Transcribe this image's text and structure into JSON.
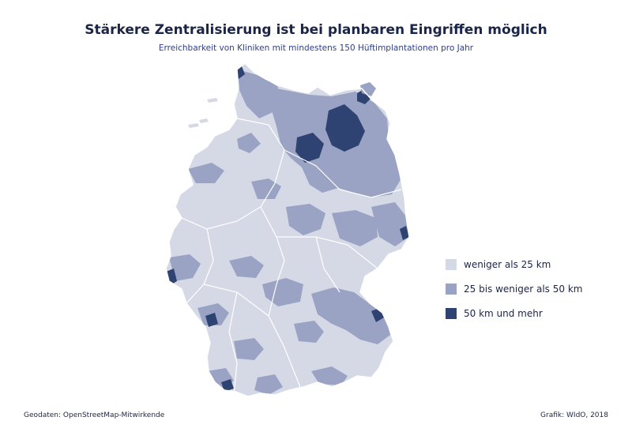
{
  "title": "Stärkere Zentralisierung ist bei planbaren Eingriffen möglich",
  "subtitle": "Erreichbarkeit von Kliniken mit mindestens 150 Hüftimplantationen pro Jahr",
  "legend": [
    {
      "label": "weniger als 25 km",
      "color": "#d5d9e6"
    },
    {
      "label": "25 bis weniger als 50 km",
      "color": "#9aa3c4"
    },
    {
      "label": "50 km und mehr",
      "color": "#2e4371"
    }
  ],
  "colors": {
    "light": "#d5d9e6",
    "medium": "#9aa3c4",
    "dark": "#2e4371",
    "border": "#ffffff"
  },
  "footer": {
    "source": "Geodaten: OpenStreetMap-Mitwirkende",
    "credit": "Grafik: WIdO, 2018"
  }
}
